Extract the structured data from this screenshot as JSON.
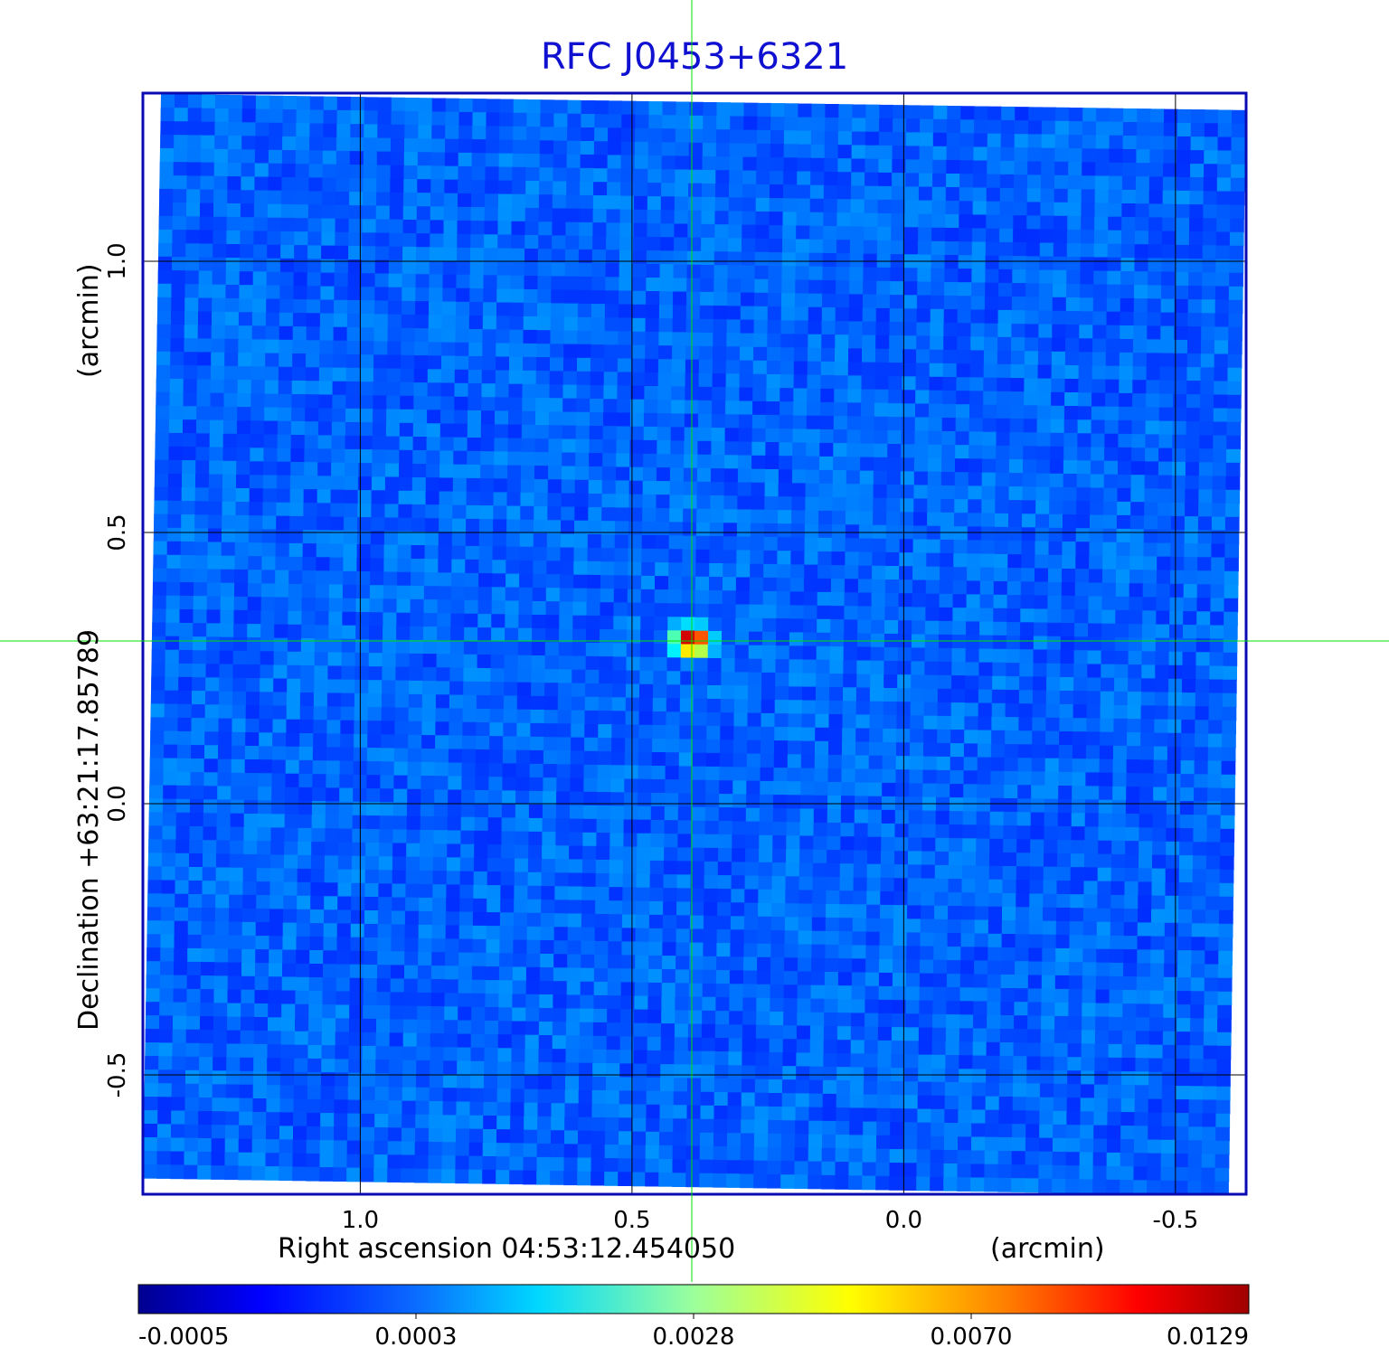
{
  "chart_data": {
    "type": "heatmap",
    "title": "RFC J0453+6321",
    "xlabel": "Right ascension  04:53:12.454050",
    "xunit": "(arcmin)",
    "ylabel": "Declination  +63:21:17.85789",
    "yunit": "(arcmin)",
    "xlim": [
      1.4,
      -0.63
    ],
    "ylim": [
      -0.72,
      1.31
    ],
    "xticks": [
      1.0,
      0.5,
      0.0,
      -0.5
    ],
    "xtick_labels": [
      "1.0",
      "0.5",
      "0.0",
      "-0.5"
    ],
    "yticks": [
      1.0,
      0.5,
      0.0,
      -0.5
    ],
    "ytick_labels": [
      "1.0",
      "0.5",
      "0.0",
      "-0.5"
    ],
    "grid": true,
    "crosshair": {
      "x": 0.39,
      "y": 0.3
    },
    "source_peak": {
      "x": 0.39,
      "y": 0.3,
      "value": 0.0129
    },
    "colorbar": {
      "ticks": [
        -0.0005,
        0.0003,
        0.0028,
        0.007,
        0.0129
      ],
      "tick_labels": [
        "-0.0005",
        "0.0003",
        "0.0028",
        "0.0070",
        "0.0129"
      ],
      "colormap": "jet"
    }
  },
  "colors": {
    "frame": "#0a0ab4",
    "title": "#1010d0",
    "crosshair": "#00e000",
    "grid": "#000000",
    "background_noise": "#1f6cf0"
  }
}
